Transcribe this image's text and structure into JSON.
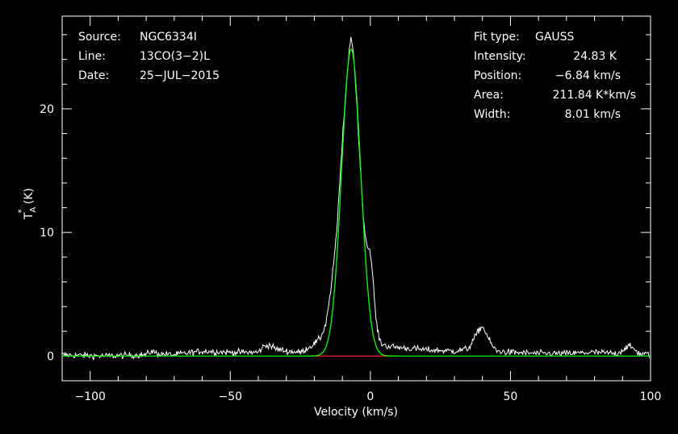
{
  "chart_data": {
    "type": "line",
    "xlabel": "Velocity (km/s)",
    "ylabel": "T",
    "ylabel_sub": "A",
    "ylabel_sup": "*",
    "ylabel_unit": "(K)",
    "xlim": [
      -110,
      100
    ],
    "ylim": [
      -2,
      27.5
    ],
    "x_ticks": [
      -100,
      -50,
      0,
      50,
      100
    ],
    "x_tick_labels": [
      "−100",
      "−50",
      "0",
      "50",
      "100"
    ],
    "y_ticks": [
      0,
      10,
      20
    ],
    "y_tick_labels": [
      "0",
      "10",
      "20"
    ],
    "grid": false,
    "info_left": [
      {
        "key": "Source:",
        "value": "NGC6334I"
      },
      {
        "key": "Line:",
        "value": "13CO(3−2)L"
      },
      {
        "key": "Date:",
        "value": "25−JUL−2015"
      }
    ],
    "info_right": [
      {
        "key": "Fit type:",
        "value": "GAUSS"
      },
      {
        "key": "Intensity:",
        "value": "24.83 K"
      },
      {
        "key": "Position:",
        "value": "−6.84 km/s"
      },
      {
        "key": "Area:",
        "value": "211.84 K*km/s"
      },
      {
        "key": "Width:",
        "value": "8.01 km/s"
      }
    ],
    "series": [
      {
        "color": "#ffffff",
        "style": "noisy-spectrum",
        "baseline_noise_K": 0.25,
        "x": [
          -110,
          -95,
          -80,
          -78,
          -76,
          -70,
          -60,
          -50,
          -40,
          -38,
          -36,
          -34,
          -30,
          -25,
          -22,
          -20,
          -18,
          -16,
          -14,
          -12,
          -10,
          -8,
          -7,
          -6,
          -5,
          -4,
          -3,
          -2,
          -1,
          0,
          1,
          2,
          3,
          4,
          6,
          10,
          20,
          30,
          35,
          37,
          39,
          40,
          41,
          43,
          45,
          50,
          60,
          70,
          80,
          88,
          90,
          92,
          94,
          96,
          100
        ],
        "y": [
          0.1,
          0.0,
          0.1,
          0.4,
          0.2,
          0.1,
          0.4,
          0.3,
          0.3,
          0.8,
          0.9,
          0.6,
          0.4,
          0.3,
          0.7,
          1.0,
          1.4,
          2.5,
          5.5,
          10.0,
          17.5,
          23.5,
          26.0,
          24.5,
          21.0,
          17.0,
          13.0,
          10.0,
          8.8,
          8.5,
          6.0,
          3.0,
          1.5,
          1.0,
          0.8,
          0.7,
          0.5,
          0.4,
          0.6,
          1.4,
          2.2,
          2.4,
          2.0,
          1.0,
          0.4,
          0.3,
          0.2,
          0.2,
          0.3,
          0.2,
          0.5,
          0.8,
          0.6,
          0.2,
          0.1
        ]
      },
      {
        "color": "#00ff00",
        "style": "gaussian-fit",
        "amplitude": 24.83,
        "center": -6.84,
        "fwhm": 8.01
      },
      {
        "color": "#ff2020",
        "style": "baseline-window",
        "x": [
          -20,
          10
        ],
        "y": [
          0,
          0
        ]
      }
    ]
  }
}
